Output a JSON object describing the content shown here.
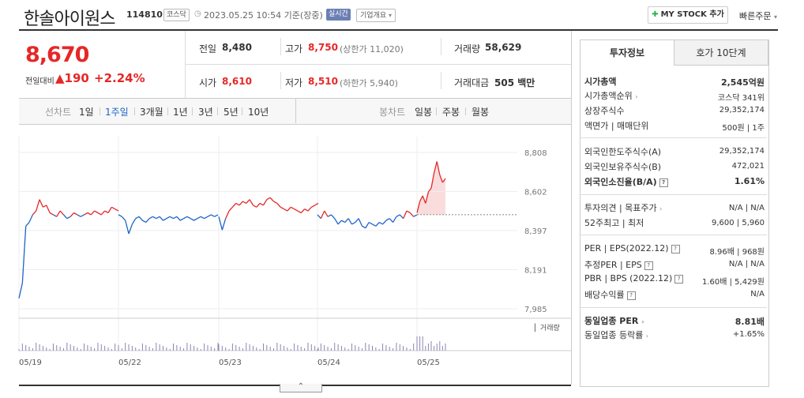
{
  "header": {
    "name": "한솔아이원스",
    "code": "114810",
    "market_badge": "코스닥",
    "date": "2023.05.25 10:54 기준(장중)",
    "realtime_badge": "실시간",
    "corp_info": "기업개요",
    "mystock_button": "MY STOCK 추가",
    "quick_order": "빠른주문"
  },
  "quote": {
    "price": "8,670",
    "prev_label": "전일대비",
    "change": "▲190",
    "change_pct": "+2.24%",
    "prev_close_label": "전일",
    "prev_close": "8,480",
    "high_label": "고가",
    "high": "8,750",
    "upper_limit": "(상한가 11,020)",
    "volume_label": "거래량",
    "volume": "58,629",
    "open_label": "시가",
    "open": "8,610",
    "low_label": "저가",
    "low": "8,510",
    "lower_limit": "(하한가 5,940)",
    "amount_label": "거래대금",
    "amount": "505 백만"
  },
  "periods": {
    "line_label": "선차트",
    "line_tabs": [
      "1일",
      "1주일",
      "3개월",
      "1년",
      "3년",
      "5년",
      "10년"
    ],
    "selected": "1주일",
    "candle_label": "봉차트",
    "candle_tabs": [
      "일봉",
      "주봉",
      "월봉"
    ]
  },
  "chart_data": {
    "type": "line",
    "y_ticks": [
      "8,808",
      "8,602",
      "8,397",
      "8,191",
      "7,985"
    ],
    "ylim": [
      7985,
      8808
    ],
    "x_ticks": [
      "05/19",
      "05/22",
      "05/23",
      "05/24",
      "05/25"
    ],
    "prev_close": 8480,
    "volume_legend": "거래량",
    "colors": {
      "up": "#e62727",
      "down": "#1e63c9"
    },
    "series": [
      {
        "day": "05/19",
        "values": [
          8040,
          8120,
          8420,
          8440,
          8480,
          8500,
          8560,
          8520,
          8530,
          8490,
          8480,
          8470,
          8500,
          8480,
          8460,
          8470,
          8490,
          8480,
          8470,
          8480,
          8490,
          8480,
          8500,
          8490,
          8480,
          8500,
          8490,
          8520,
          8510,
          8500
        ]
      },
      {
        "day": "05/22",
        "values": [
          8480,
          8470,
          8450,
          8380,
          8430,
          8460,
          8470,
          8450,
          8440,
          8460,
          8470,
          8460,
          8470,
          8450,
          8460,
          8470,
          8460,
          8470,
          8450,
          8460,
          8470,
          8460,
          8450,
          8460,
          8470,
          8460,
          8470,
          8480,
          8470,
          8480
        ]
      },
      {
        "day": "05/23",
        "values": [
          8470,
          8400,
          8460,
          8500,
          8520,
          8540,
          8530,
          8550,
          8540,
          8560,
          8530,
          8520,
          8540,
          8530,
          8560,
          8570,
          8550,
          8540,
          8520,
          8510,
          8500,
          8520,
          8510,
          8500,
          8490,
          8510,
          8500,
          8520,
          8530,
          8540
        ]
      },
      {
        "day": "05/24",
        "values": [
          8480,
          8460,
          8500,
          8470,
          8480,
          8460,
          8430,
          8450,
          8440,
          8460,
          8430,
          8440,
          8460,
          8420,
          8410,
          8440,
          8430,
          8420,
          8440,
          8430,
          8450,
          8460,
          8440,
          8470,
          8480,
          8460,
          8500,
          8490,
          8470,
          8480
        ]
      },
      {
        "day": "05/25",
        "values": [
          8490,
          8550,
          8580,
          8540,
          8600,
          8620,
          8700,
          8760,
          8690,
          8650,
          8670
        ]
      }
    ]
  },
  "info": {
    "tab_active": "투자정보",
    "tab_other": "호가 10단계",
    "rows1": [
      {
        "label": "시가총액",
        "value": "2,545억원"
      },
      {
        "label": "시가총액순위",
        "value": "코스닥 341위"
      },
      {
        "label": "상장주식수",
        "value": "29,352,174"
      },
      {
        "label": "액면가 | 매매단위",
        "value": "500원 | 1주"
      }
    ],
    "rows2": [
      {
        "label": "외국인한도주식수(A)",
        "value": "29,352,174"
      },
      {
        "label": "외국인보유주식수(B)",
        "value": "472,021"
      },
      {
        "label": "외국인소진율(B/A)",
        "value": "1.61%"
      }
    ],
    "rows3": [
      {
        "label": "투자의견 | 목표주가",
        "value": "N/A | N/A"
      },
      {
        "label": "52주최고 | 최저",
        "value": "9,600 | 5,960"
      }
    ],
    "rows4": [
      {
        "label": "PER | EPS(2022.12)",
        "value": "8.96배 | 968원"
      },
      {
        "label": "추정PER | EPS",
        "value": "N/A | N/A"
      },
      {
        "label": "PBR | BPS (2022.12)",
        "value": "1.60배 | 5,429원"
      },
      {
        "label": "배당수익률",
        "value": "N/A"
      }
    ],
    "rows5": [
      {
        "label": "동일업종 PER",
        "value": "8.81배"
      },
      {
        "label": "동일업종 등락률",
        "value": "+1.65%"
      }
    ]
  }
}
